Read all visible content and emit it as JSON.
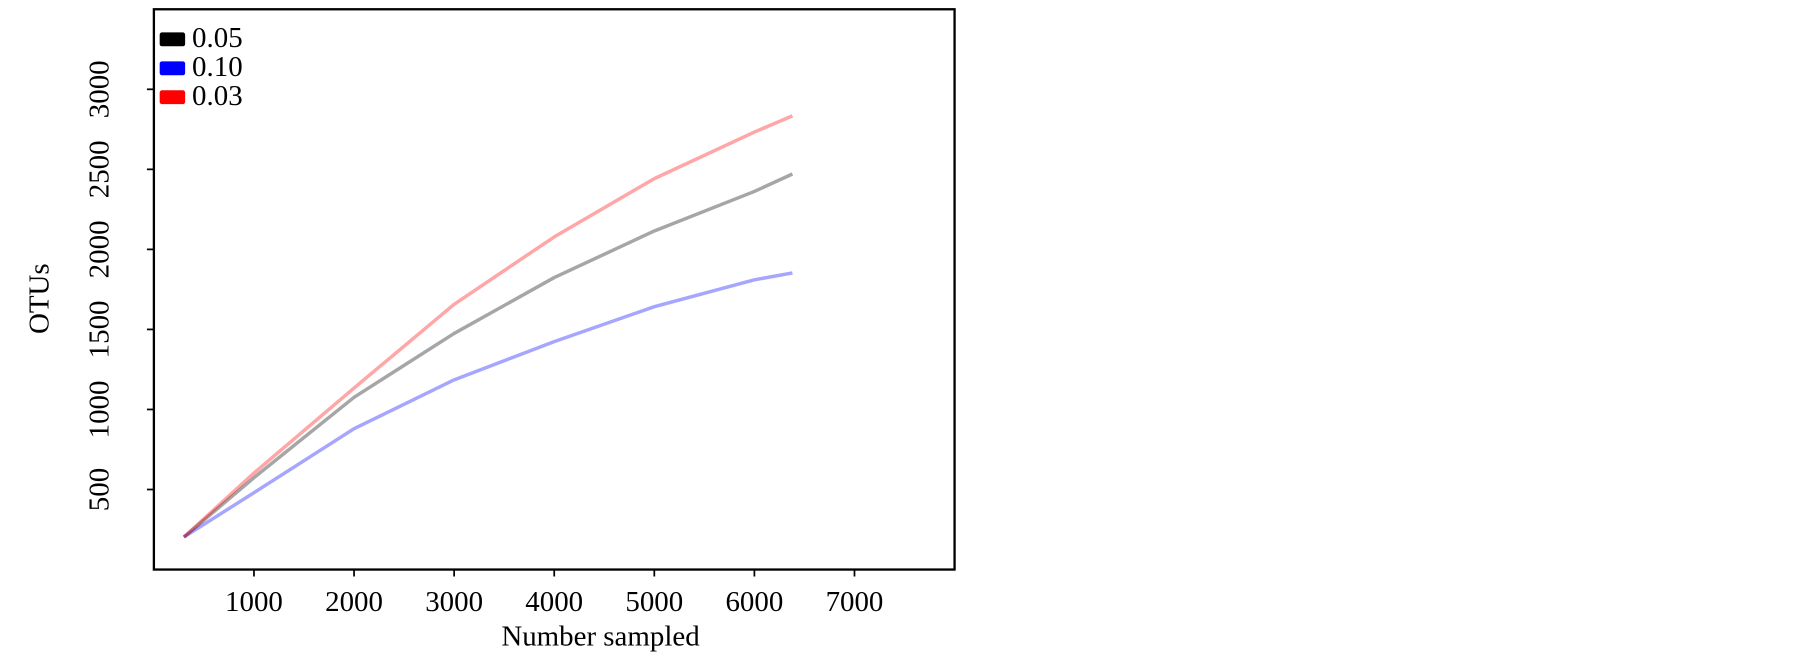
{
  "chart_data": {
    "type": "line",
    "x_label": "Number sampled",
    "y_label": "OTUs",
    "x": [
      300,
      1000,
      2000,
      3000,
      4000,
      5000,
      6000,
      6380
    ],
    "series": [
      {
        "name": "0.05",
        "color": "#000000",
        "values": [
          203,
          574,
          1076,
          1475,
          1824,
          2115,
          2362,
          2471
        ]
      },
      {
        "name": "0.10",
        "color": "#0000ff",
        "values": [
          203,
          480,
          880,
          1185,
          1424,
          1642,
          1810,
          1853
        ]
      },
      {
        "name": "0.03",
        "color": "#ff0000",
        "values": [
          203,
          603,
          1134,
          1657,
          2078,
          2442,
          2733,
          2834
        ]
      }
    ],
    "xlim": [
      0,
      8000
    ],
    "ylim": [
      0,
      3500
    ],
    "xticks": [
      1000,
      2000,
      3000,
      4000,
      5000,
      6000,
      7000
    ],
    "yticks": [
      500,
      1000,
      1500,
      2000,
      2500,
      3000
    ],
    "line_opacity": 0.35,
    "legend": "upper left"
  }
}
